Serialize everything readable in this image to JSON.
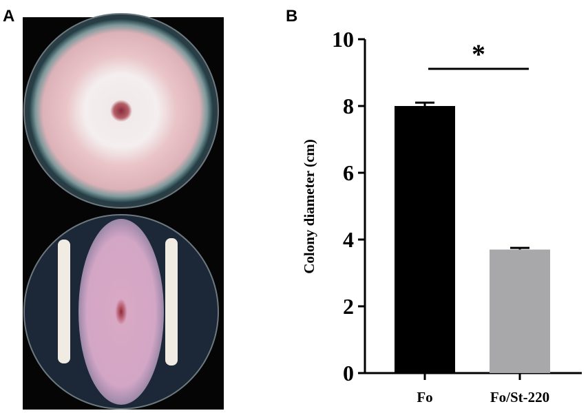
{
  "panel_labels": [
    "A",
    "B"
  ],
  "chart_data": {
    "type": "bar",
    "ylabel": "Colony diameter (cm)",
    "categories": [
      "Fo",
      "Fo/St-220"
    ],
    "series": [
      {
        "colors": [
          "#000000",
          "#a8a8aa"
        ]
      }
    ],
    "values": [
      8.0,
      3.7
    ],
    "errors": [
      0.1,
      0.05
    ],
    "ylim": [
      0,
      10
    ],
    "yticks": [
      0,
      2,
      4,
      6,
      8,
      10
    ],
    "significance": "*"
  }
}
